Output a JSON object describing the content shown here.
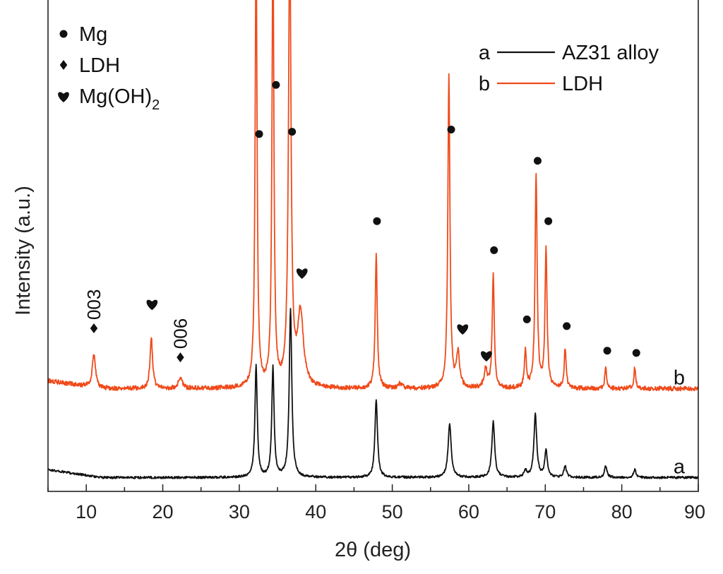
{
  "chart_data": {
    "type": "line",
    "xlabel": "2θ (deg)",
    "ylabel": "Intensity (a.u.)",
    "xlim": [
      5,
      90
    ],
    "x_ticks": [
      10,
      20,
      30,
      40,
      50,
      60,
      70,
      80,
      90
    ],
    "y_ticks_shown": false,
    "grid": false,
    "colors": {
      "a": "#111111",
      "b": "#f04a1a"
    },
    "legend": {
      "placement": "top-right",
      "entries": [
        {
          "key": "a",
          "label": "AZ31 alloy",
          "series": "a"
        },
        {
          "key": "b",
          "label": "LDH",
          "series": "b"
        }
      ]
    },
    "marker_legend": {
      "placement": "top-left",
      "entries": [
        {
          "symbol": "circle",
          "label": "Mg"
        },
        {
          "symbol": "diamond",
          "label": "LDH"
        },
        {
          "symbol": "heart",
          "label": "Mg(OH)",
          "subscript": "2"
        }
      ]
    },
    "series": [
      {
        "id": "a",
        "curve_label": "a",
        "baseline": 0.62,
        "noise": 0.05,
        "peaks": [
          {
            "x": 32.2,
            "y": 5.0,
            "w": 0.18
          },
          {
            "x": 34.4,
            "y": 4.9,
            "w": 0.18
          },
          {
            "x": 36.7,
            "y": 7.5,
            "w": 0.2
          },
          {
            "x": 47.9,
            "y": 3.5,
            "w": 0.2
          },
          {
            "x": 57.5,
            "y": 2.4,
            "w": 0.24
          },
          {
            "x": 63.2,
            "y": 2.5,
            "w": 0.22
          },
          {
            "x": 67.4,
            "y": 0.3,
            "w": 0.2
          },
          {
            "x": 68.7,
            "y": 2.8,
            "w": 0.22
          },
          {
            "x": 70.1,
            "y": 1.2,
            "w": 0.2
          },
          {
            "x": 72.6,
            "y": 0.5,
            "w": 0.2
          },
          {
            "x": 77.9,
            "y": 0.5,
            "w": 0.2
          },
          {
            "x": 81.7,
            "y": 0.35,
            "w": 0.2
          }
        ]
      },
      {
        "id": "b",
        "curve_label": "b",
        "baseline": 4.6,
        "noise": 0.1,
        "peaks": [
          {
            "x": 11.0,
            "y": 1.5,
            "w": 0.25
          },
          {
            "x": 18.5,
            "y": 2.3,
            "w": 0.2
          },
          {
            "x": 22.3,
            "y": 0.45,
            "w": 0.3
          },
          {
            "x": 32.2,
            "y": 20.0,
            "w": 0.15
          },
          {
            "x": 34.4,
            "y": 20.0,
            "w": 0.15
          },
          {
            "x": 36.6,
            "y": 20.0,
            "w": 0.2
          },
          {
            "x": 38.0,
            "y": 3.3,
            "w": 0.45
          },
          {
            "x": 47.9,
            "y": 6.0,
            "w": 0.16
          },
          {
            "x": 51.0,
            "y": 0.2,
            "w": 0.3
          },
          {
            "x": 57.4,
            "y": 14.0,
            "w": 0.16
          },
          {
            "x": 58.6,
            "y": 1.5,
            "w": 0.25
          },
          {
            "x": 62.2,
            "y": 0.8,
            "w": 0.25
          },
          {
            "x": 63.2,
            "y": 5.1,
            "w": 0.16
          },
          {
            "x": 67.4,
            "y": 1.7,
            "w": 0.15
          },
          {
            "x": 68.8,
            "y": 9.6,
            "w": 0.16
          },
          {
            "x": 70.1,
            "y": 6.2,
            "w": 0.16
          },
          {
            "x": 72.6,
            "y": 1.8,
            "w": 0.15
          },
          {
            "x": 77.9,
            "y": 0.9,
            "w": 0.15
          },
          {
            "x": 81.7,
            "y": 0.95,
            "w": 0.15
          }
        ]
      }
    ],
    "annotations": [
      {
        "x": 32.6,
        "y": 16.0,
        "symbol": "circle"
      },
      {
        "x": 34.8,
        "y": 18.2,
        "symbol": "circle"
      },
      {
        "x": 36.9,
        "y": 16.1,
        "symbol": "circle"
      },
      {
        "x": 48.0,
        "y": 12.1,
        "symbol": "circle"
      },
      {
        "x": 57.7,
        "y": 16.2,
        "symbol": "circle"
      },
      {
        "x": 63.3,
        "y": 10.8,
        "symbol": "circle"
      },
      {
        "x": 67.6,
        "y": 7.7,
        "symbol": "circle"
      },
      {
        "x": 69.0,
        "y": 14.8,
        "symbol": "circle"
      },
      {
        "x": 70.4,
        "y": 12.1,
        "symbol": "circle"
      },
      {
        "x": 72.8,
        "y": 7.4,
        "symbol": "circle"
      },
      {
        "x": 78.1,
        "y": 6.3,
        "symbol": "circle"
      },
      {
        "x": 81.9,
        "y": 6.2,
        "symbol": "circle"
      },
      {
        "x": 11.0,
        "y": 7.3,
        "symbol": "diamond",
        "text": "003"
      },
      {
        "x": 22.3,
        "y": 6.0,
        "symbol": "diamond",
        "text": "006"
      },
      {
        "x": 18.6,
        "y": 8.4,
        "symbol": "heart"
      },
      {
        "x": 38.2,
        "y": 9.8,
        "symbol": "heart"
      },
      {
        "x": 59.2,
        "y": 7.3,
        "symbol": "heart"
      },
      {
        "x": 62.3,
        "y": 6.1,
        "symbol": "heart"
      }
    ]
  }
}
